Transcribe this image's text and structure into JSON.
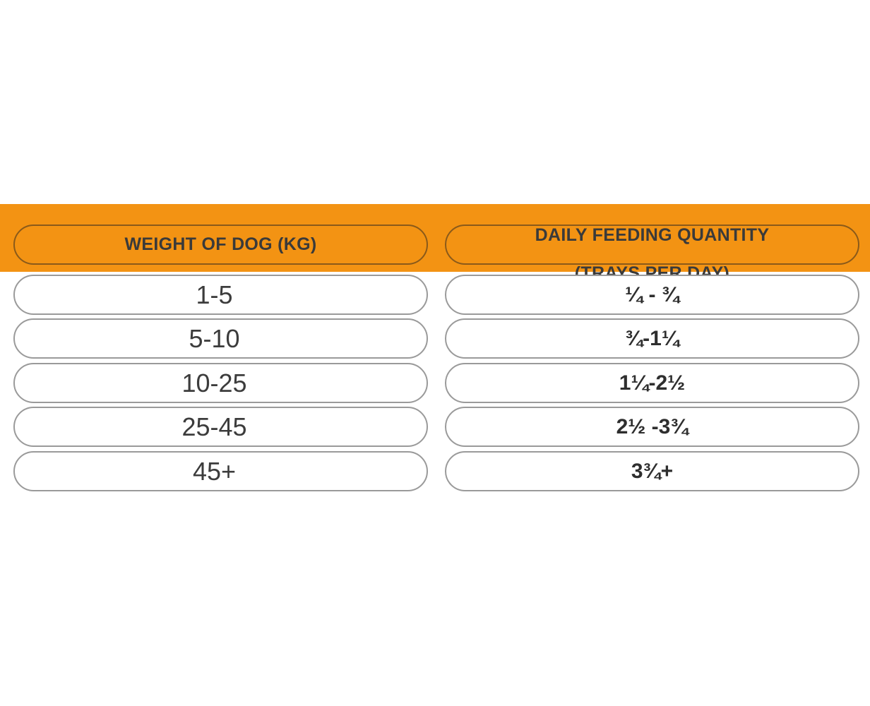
{
  "colors": {
    "header_band": "#f39313",
    "cell_border": "#9a9a9a",
    "text": "#3c3c3c"
  },
  "table": {
    "headers": {
      "weight": "WEIGHT OF DOG (KG)",
      "quantity_line1": "DAILY FEEDING QUANTITY",
      "quantity_line2": "(TRAYS PER DAY)"
    },
    "rows": [
      {
        "weight": "1-5",
        "quantity": "¼ - ¾"
      },
      {
        "weight": "5-10",
        "quantity": "¾-1¼"
      },
      {
        "weight": "10-25",
        "quantity": "1¼-2½"
      },
      {
        "weight": "25-45",
        "quantity": "2½ -3¾"
      },
      {
        "weight": "45+",
        "quantity": "3¾+"
      }
    ]
  }
}
